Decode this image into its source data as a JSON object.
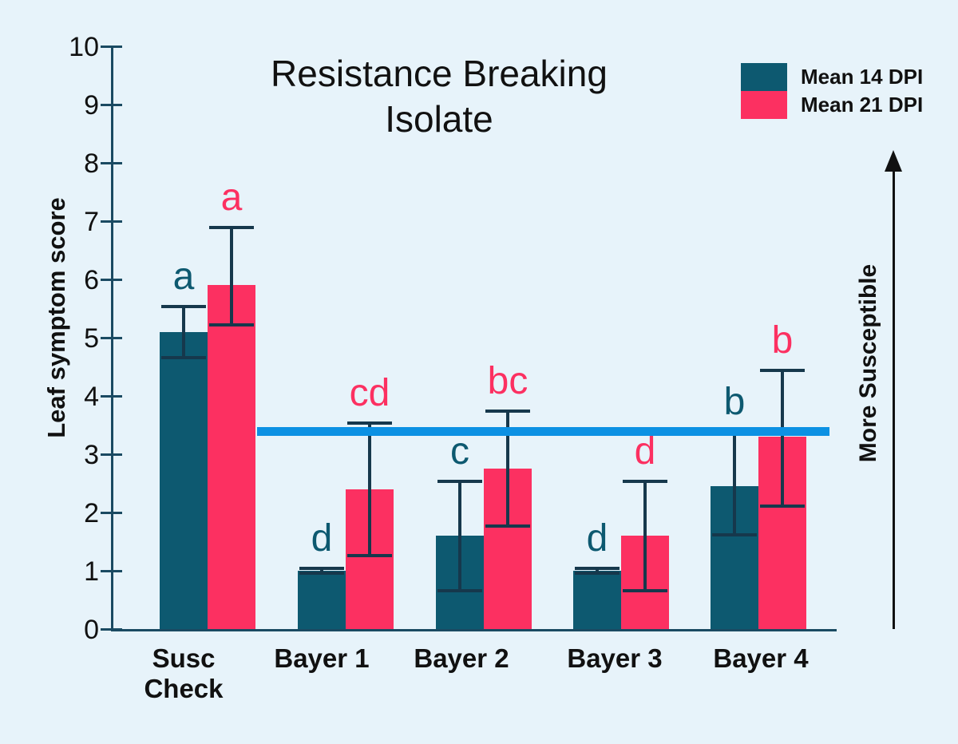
{
  "title": {
    "line1": "Resistance Breaking",
    "line2": "Isolate"
  },
  "legend": {
    "items": [
      {
        "label": "Mean 14 DPI",
        "color": "#0d5970"
      },
      {
        "label": "Mean 21 DPI",
        "color": "#fc3061"
      }
    ]
  },
  "y_axis": {
    "label": "Leaf symptom score",
    "ticks": [
      0,
      1,
      2,
      3,
      4,
      5,
      6,
      7,
      8,
      9,
      10
    ]
  },
  "right_annotation": {
    "label": "More Susceptible"
  },
  "colors": {
    "background": "#e7f3fa",
    "axis": "#1a4a62",
    "error_bar": "#16384c",
    "threshold_line": "#0c91e3",
    "series_14dpi": "#0d5970",
    "series_21dpi": "#fc3061"
  },
  "chart_data": {
    "type": "bar",
    "title": "Resistance Breaking Isolate",
    "xlabel": "",
    "ylabel": "Leaf symptom score",
    "ylim": [
      0,
      10
    ],
    "grid": false,
    "legend_position": "top-right",
    "categories": [
      "Susc\nCheck",
      "Bayer 1",
      "Bayer 2",
      "Bayer 3",
      "Bayer 4"
    ],
    "series": [
      {
        "name": "Mean 14 DPI",
        "color": "#0d5970",
        "values": [
          5.1,
          1.0,
          1.6,
          1.0,
          2.45
        ],
        "error_low": [
          4.65,
          0.95,
          0.65,
          0.95,
          1.6
        ],
        "error_high": [
          5.55,
          1.05,
          2.55,
          1.05,
          3.4
        ],
        "sig_letters": [
          "a",
          "d",
          "c",
          "d",
          "b"
        ]
      },
      {
        "name": "Mean 21 DPI",
        "color": "#fc3061",
        "values": [
          5.9,
          2.4,
          2.75,
          1.6,
          3.3
        ],
        "error_low": [
          5.2,
          1.25,
          1.75,
          0.65,
          2.1
        ],
        "error_high": [
          6.9,
          3.55,
          3.75,
          2.55,
          4.45
        ],
        "sig_letters": [
          "a",
          "cd",
          "bc",
          "d",
          "b"
        ]
      }
    ],
    "threshold_line": {
      "value": 3.4,
      "color": "#0c91e3"
    },
    "annotation_arrow_label": "More Susceptible"
  }
}
